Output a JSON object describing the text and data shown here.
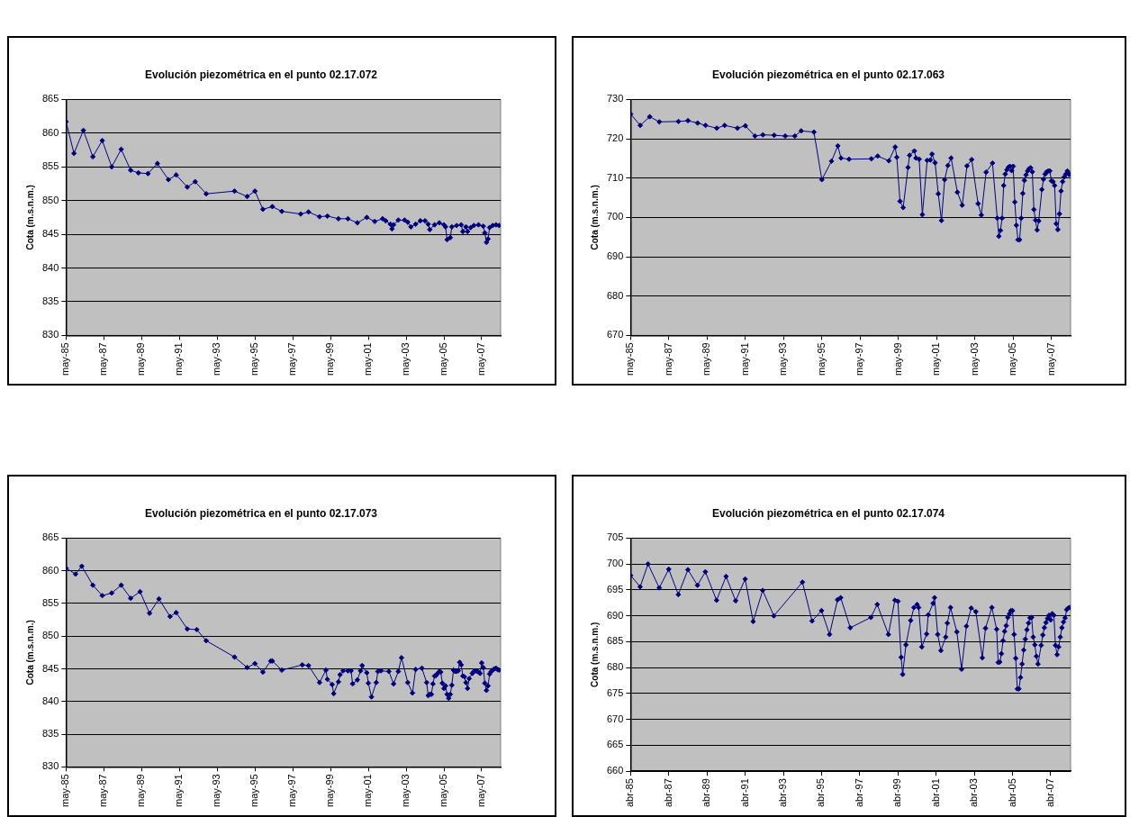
{
  "chart_data": [
    {
      "type": "line",
      "title": "Evolución piezométrica en el punto 02.17.072",
      "ylabel": "Cota (m.s.n.m.)",
      "color": "#000080",
      "marker": "diamond",
      "grid": "y",
      "legend": false,
      "xlim": [
        "1985-05",
        "2008-05"
      ],
      "ylim": [
        830,
        865
      ],
      "yticks": [
        830,
        835,
        840,
        845,
        850,
        855,
        860,
        865
      ],
      "xticks": [
        {
          "value": "1985-05",
          "label": "may-85"
        },
        {
          "value": "1987-05",
          "label": "may-87"
        },
        {
          "value": "1989-05",
          "label": "may-89"
        },
        {
          "value": "1991-05",
          "label": "may-91"
        },
        {
          "value": "1993-05",
          "label": "may-93"
        },
        {
          "value": "1995-05",
          "label": "may-95"
        },
        {
          "value": "1997-05",
          "label": "may-97"
        },
        {
          "value": "1999-05",
          "label": "may-99"
        },
        {
          "value": "2001-05",
          "label": "may-01"
        },
        {
          "value": "2003-05",
          "label": "may-03"
        },
        {
          "value": "2005-05",
          "label": "may-05"
        },
        {
          "value": "2007-05",
          "label": "may-07"
        }
      ],
      "x": [
        "1985-05",
        "1985-10",
        "1986-04",
        "1986-10",
        "1987-04",
        "1987-10",
        "1988-04",
        "1988-10",
        "1989-03",
        "1989-09",
        "1990-03",
        "1990-10",
        "1991-03",
        "1991-10",
        "1992-03",
        "1992-10",
        "1994-04",
        "1994-12",
        "1995-05",
        "1995-10",
        "1996-04",
        "1996-10",
        "1997-10",
        "1998-03",
        "1998-10",
        "1999-03",
        "1999-10",
        "2000-04",
        "2000-10",
        "2001-04",
        "2001-09",
        "2002-02",
        "2002-04",
        "2002-07",
        "2002-08",
        "2002-09",
        "2002-12",
        "2003-04",
        "2003-06",
        "2003-08",
        "2003-11",
        "2004-02",
        "2004-05",
        "2004-07",
        "2004-08",
        "2004-11",
        "2005-02",
        "2005-05",
        "2005-06",
        "2005-07",
        "2005-09",
        "2005-10",
        "2006-01",
        "2006-04",
        "2006-05",
        "2006-07",
        "2006-08",
        "2006-10",
        "2006-12",
        "2007-03",
        "2007-06",
        "2007-07",
        "2007-08",
        "2007-09",
        "2007-10",
        "2007-12",
        "2008-02",
        "2008-04"
      ],
      "values": [
        861.7,
        857.0,
        860.4,
        856.5,
        858.9,
        855.0,
        857.6,
        854.5,
        854.1,
        854.0,
        855.5,
        853.1,
        853.8,
        852.0,
        852.8,
        851.0,
        851.4,
        850.6,
        851.4,
        848.7,
        849.1,
        848.4,
        848.0,
        848.3,
        847.6,
        847.7,
        847.3,
        847.3,
        846.7,
        847.5,
        846.9,
        847.3,
        847.0,
        846.5,
        845.8,
        846.4,
        847.1,
        847.1,
        846.8,
        846.1,
        846.5,
        847.0,
        847.0,
        846.5,
        845.7,
        846.4,
        846.7,
        846.4,
        846.1,
        844.2,
        844.5,
        846.1,
        846.3,
        846.4,
        845.4,
        846.1,
        845.4,
        846.0,
        846.3,
        846.4,
        846.2,
        845.2,
        843.8,
        844.3,
        846.0,
        846.3,
        846.4,
        846.3
      ]
    },
    {
      "type": "line",
      "title": "Evolución piezométrica en el punto 02.17.063",
      "ylabel": "Cota (m.s.n.m.)",
      "color": "#000080",
      "marker": "diamond",
      "grid": "y",
      "legend": false,
      "xlim": [
        "1985-05",
        "2008-05"
      ],
      "ylim": [
        670,
        730
      ],
      "yticks": [
        670,
        680,
        690,
        700,
        710,
        720,
        730
      ],
      "xticks": [
        {
          "value": "1985-05",
          "label": "may-85"
        },
        {
          "value": "1987-05",
          "label": "may-87"
        },
        {
          "value": "1989-05",
          "label": "may-89"
        },
        {
          "value": "1991-05",
          "label": "may-91"
        },
        {
          "value": "1993-05",
          "label": "may-93"
        },
        {
          "value": "1995-05",
          "label": "may-95"
        },
        {
          "value": "1997-05",
          "label": "may-97"
        },
        {
          "value": "1999-05",
          "label": "may-99"
        },
        {
          "value": "2001-05",
          "label": "may-01"
        },
        {
          "value": "2003-05",
          "label": "may-03"
        },
        {
          "value": "2005-05",
          "label": "may-05"
        },
        {
          "value": "2007-05",
          "label": "may-07"
        }
      ],
      "x": [
        "1985-05",
        "1985-11",
        "1986-05",
        "1986-11",
        "1987-11",
        "1988-05",
        "1988-11",
        "1989-04",
        "1989-11",
        "1990-04",
        "1990-12",
        "1991-05",
        "1991-11",
        "1992-04",
        "1992-11",
        "1993-06",
        "1993-12",
        "1994-04",
        "1994-12",
        "1995-05",
        "1995-11",
        "1996-03",
        "1996-05",
        "1996-10",
        "1997-12",
        "1998-04",
        "1998-11",
        "1999-03",
        "1999-04",
        "1999-06",
        "1999-08",
        "1999-11",
        "1999-12",
        "2000-03",
        "2000-04",
        "2000-06",
        "2000-08",
        "2000-11",
        "2001-01",
        "2001-02",
        "2001-04",
        "2001-06",
        "2001-08",
        "2001-10",
        "2001-12",
        "2002-02",
        "2002-06",
        "2002-09",
        "2002-12",
        "2003-03",
        "2003-07",
        "2003-09",
        "2003-12",
        "2004-04",
        "2004-07",
        "2004-08",
        "2004-09",
        "2004-10",
        "2004-11",
        "2004-12",
        "2005-01",
        "2005-02",
        "2005-03",
        "2005-04",
        "2005-05",
        "2005-06",
        "2005-07",
        "2005-08",
        "2005-09",
        "2005-10",
        "2005-11",
        "2005-12",
        "2006-01",
        "2006-02",
        "2006-03",
        "2006-04",
        "2006-05",
        "2006-06",
        "2006-07",
        "2006-08",
        "2006-09",
        "2006-11",
        "2006-12",
        "2007-01",
        "2007-02",
        "2007-03",
        "2007-04",
        "2007-05",
        "2007-06",
        "2007-07",
        "2007-08",
        "2007-09",
        "2007-10",
        "2007-11",
        "2007-12",
        "2008-01",
        "2008-02",
        "2008-03",
        "2008-04",
        "2008-05"
      ],
      "values": [
        726.3,
        723.4,
        725.6,
        724.3,
        724.4,
        724.6,
        724.0,
        723.4,
        722.7,
        723.4,
        722.7,
        723.3,
        720.7,
        721.0,
        720.9,
        720.7,
        720.7,
        722.0,
        721.7,
        709.6,
        714.3,
        718.2,
        715.1,
        714.8,
        714.9,
        715.6,
        714.4,
        717.9,
        715.3,
        704.1,
        702.5,
        712.7,
        715.8,
        716.9,
        715.1,
        714.8,
        700.7,
        714.5,
        714.6,
        716.1,
        713.9,
        706.0,
        699.2,
        709.6,
        713.2,
        715.1,
        706.4,
        703.1,
        713.1,
        714.7,
        703.5,
        700.6,
        711.5,
        713.8,
        699.8,
        695.2,
        696.7,
        699.8,
        708.1,
        711.0,
        712.1,
        712.8,
        713.0,
        711.9,
        713.0,
        703.9,
        698.0,
        694.3,
        694.3,
        699.8,
        706.1,
        709.4,
        710.8,
        711.8,
        712.4,
        712.6,
        711.6,
        702.0,
        699.3,
        696.8,
        699.1,
        707.1,
        709.7,
        711.0,
        711.6,
        711.8,
        711.8,
        709.3,
        709.1,
        708.1,
        698.4,
        696.9,
        700.9,
        706.7,
        709.1,
        710.3,
        711.0,
        711.8,
        710.9,
        711.0
      ]
    },
    {
      "type": "line",
      "title": "Evolución piezométrica en el punto 02.17.073",
      "ylabel": "Cota (m.s.n.m.)",
      "color": "#000080",
      "marker": "diamond",
      "grid": "y",
      "legend": false,
      "xlim": [
        "1985-05",
        "2008-05"
      ],
      "ylim": [
        830,
        865
      ],
      "yticks": [
        830,
        835,
        840,
        845,
        850,
        855,
        860,
        865
      ],
      "xticks": [
        {
          "value": "1985-05",
          "label": "may-85"
        },
        {
          "value": "1987-05",
          "label": "may-87"
        },
        {
          "value": "1989-05",
          "label": "may-89"
        },
        {
          "value": "1991-05",
          "label": "may-91"
        },
        {
          "value": "1993-05",
          "label": "may-93"
        },
        {
          "value": "1995-05",
          "label": "may-95"
        },
        {
          "value": "1997-05",
          "label": "may-97"
        },
        {
          "value": "1999-05",
          "label": "may-99"
        },
        {
          "value": "2001-05",
          "label": "may-01"
        },
        {
          "value": "2003-05",
          "label": "may-03"
        },
        {
          "value": "2005-05",
          "label": "may-05"
        },
        {
          "value": "2007-05",
          "label": "may-07"
        }
      ],
      "x": [
        "1985-05",
        "1985-11",
        "1986-03",
        "1986-10",
        "1987-04",
        "1987-10",
        "1988-04",
        "1988-10",
        "1989-04",
        "1989-10",
        "1990-04",
        "1990-11",
        "1991-03",
        "1991-10",
        "1992-04",
        "1992-10",
        "1994-04",
        "1994-12",
        "1995-05",
        "1995-10",
        "1996-03",
        "1996-04",
        "1996-10",
        "1997-11",
        "1998-03",
        "1998-10",
        "1999-02",
        "1999-03",
        "1999-06",
        "1999-07",
        "1999-10",
        "1999-11",
        "2000-01",
        "2000-04",
        "2000-06",
        "2000-07",
        "2000-10",
        "2000-12",
        "2001-01",
        "2001-04",
        "2001-05",
        "2001-07",
        "2001-10",
        "2001-11",
        "2002-01",
        "2002-06",
        "2002-09",
        "2002-12",
        "2003-02",
        "2003-06",
        "2003-09",
        "2003-11",
        "2004-03",
        "2004-06",
        "2004-07",
        "2004-08",
        "2004-09",
        "2004-10",
        "2004-11",
        "2004-12",
        "2005-01",
        "2005-02",
        "2005-03",
        "2005-04",
        "2005-05",
        "2005-06",
        "2005-07",
        "2005-08",
        "2005-09",
        "2005-10",
        "2005-11",
        "2005-12",
        "2006-01",
        "2006-02",
        "2006-03",
        "2006-04",
        "2006-05",
        "2006-06",
        "2006-07",
        "2006-08",
        "2006-09",
        "2006-11",
        "2006-12",
        "2007-01",
        "2007-02",
        "2007-03",
        "2007-04",
        "2007-05",
        "2007-06",
        "2007-07",
        "2007-08",
        "2007-09",
        "2007-10",
        "2007-11",
        "2007-12",
        "2008-01",
        "2008-02",
        "2008-03",
        "2008-04"
      ],
      "values": [
        860.4,
        859.5,
        860.7,
        857.8,
        856.2,
        856.6,
        857.8,
        855.8,
        856.8,
        853.5,
        855.7,
        853.0,
        853.6,
        851.1,
        851.0,
        849.3,
        846.8,
        845.2,
        845.8,
        844.5,
        846.2,
        846.2,
        844.8,
        845.6,
        845.5,
        842.9,
        844.8,
        843.4,
        842.6,
        841.2,
        843.0,
        844.1,
        844.7,
        844.7,
        844.7,
        842.7,
        843.3,
        844.7,
        845.5,
        844.4,
        842.8,
        840.7,
        842.9,
        844.6,
        844.7,
        844.6,
        842.7,
        844.6,
        846.7,
        842.9,
        841.3,
        844.9,
        845.1,
        842.9,
        840.9,
        841.1,
        841.1,
        842.7,
        843.9,
        844.0,
        844.3,
        844.6,
        844.5,
        842.8,
        842.0,
        842.4,
        841.1,
        840.5,
        841.1,
        842.5,
        844.8,
        844.6,
        844.6,
        844.7,
        846.0,
        845.6,
        843.9,
        843.8,
        842.9,
        842.0,
        843.5,
        844.3,
        844.6,
        844.7,
        844.6,
        844.5,
        844.3,
        845.9,
        845.2,
        842.8,
        841.7,
        842.4,
        844.2,
        844.6,
        844.8,
        845.0,
        845.1,
        844.9,
        844.8
      ]
    },
    {
      "type": "line",
      "title": "Evolución piezométrica en el punto 02.17.074",
      "ylabel": "Cota (m.s.n.m.)",
      "color": "#000080",
      "marker": "diamond",
      "grid": "y",
      "legend": false,
      "xlim": [
        "1985-04",
        "2008-04-15"
      ],
      "ylim": [
        660,
        705
      ],
      "yticks": [
        660,
        665,
        670,
        675,
        680,
        685,
        690,
        695,
        700,
        705
      ],
      "xticks": [
        {
          "value": "1985-04",
          "label": "abr-85"
        },
        {
          "value": "1987-04",
          "label": "abr-87"
        },
        {
          "value": "1989-04",
          "label": "abr-89"
        },
        {
          "value": "1991-04",
          "label": "abr-91"
        },
        {
          "value": "1993-04",
          "label": "abr-93"
        },
        {
          "value": "1995-04",
          "label": "abr-95"
        },
        {
          "value": "1997-04",
          "label": "abr-97"
        },
        {
          "value": "1999-04",
          "label": "abr-99"
        },
        {
          "value": "2001-04",
          "label": "abr-01"
        },
        {
          "value": "2003-04",
          "label": "abr-03"
        },
        {
          "value": "2005-04",
          "label": "abr-05"
        },
        {
          "value": "2007-04",
          "label": "abr-07"
        }
      ],
      "x": [
        "1985-04",
        "1985-10",
        "1986-03",
        "1986-10",
        "1987-04",
        "1987-10",
        "1988-04",
        "1988-10",
        "1989-03",
        "1989-10",
        "1990-04",
        "1990-10",
        "1991-04",
        "1991-09",
        "1992-03",
        "1992-10",
        "1994-04",
        "1994-10",
        "1995-04",
        "1995-09",
        "1996-02",
        "1996-04",
        "1996-10",
        "1997-11",
        "1998-03",
        "1998-10",
        "1999-02",
        "1999-04",
        "1999-06",
        "1999-07",
        "1999-09",
        "1999-12",
        "2000-02",
        "2000-04",
        "2000-05",
        "2000-07",
        "2000-10",
        "2000-11",
        "2001-02",
        "2001-03",
        "2001-05",
        "2001-07",
        "2001-10",
        "2001-11",
        "2002-01",
        "2002-05",
        "2002-08",
        "2002-11",
        "2003-02",
        "2003-05",
        "2003-09",
        "2003-11",
        "2004-03",
        "2004-06",
        "2004-07",
        "2004-08",
        "2004-09",
        "2004-10",
        "2004-11",
        "2004-12",
        "2005-01",
        "2005-02",
        "2005-03",
        "2005-04",
        "2005-05",
        "2005-06",
        "2005-07",
        "2005-08",
        "2005-09",
        "2005-10",
        "2005-11",
        "2005-12",
        "2006-01",
        "2006-02",
        "2006-03",
        "2006-04",
        "2006-05",
        "2006-06",
        "2006-07",
        "2006-08",
        "2006-10",
        "2006-11",
        "2006-12",
        "2007-01",
        "2007-02",
        "2007-03",
        "2007-04",
        "2007-05",
        "2007-06",
        "2007-07",
        "2007-08",
        "2007-09",
        "2007-10",
        "2007-11",
        "2007-12",
        "2008-01",
        "2008-02",
        "2008-03",
        "2008-04"
      ],
      "values": [
        697.8,
        695.6,
        700.0,
        695.4,
        699.0,
        694.1,
        698.9,
        695.9,
        698.5,
        693.0,
        697.6,
        692.9,
        697.1,
        688.9,
        694.9,
        690.0,
        696.5,
        689.0,
        691.0,
        686.4,
        693.1,
        693.5,
        687.7,
        689.7,
        692.2,
        686.4,
        693.0,
        692.8,
        682.0,
        678.7,
        684.4,
        689.1,
        691.6,
        692.2,
        691.6,
        684.0,
        686.5,
        690.2,
        692.4,
        693.5,
        686.4,
        683.3,
        685.9,
        688.6,
        691.6,
        686.9,
        679.7,
        688.0,
        691.5,
        690.8,
        681.9,
        687.6,
        691.6,
        687.4,
        681.0,
        681.1,
        682.7,
        685.2,
        687.0,
        688.1,
        689.7,
        690.4,
        691.0,
        691.0,
        686.4,
        681.8,
        675.9,
        675.9,
        678.1,
        680.7,
        683.4,
        685.5,
        687.3,
        688.6,
        689.6,
        689.7,
        685.9,
        684.4,
        682.2,
        680.7,
        684.3,
        686.3,
        687.7,
        688.7,
        689.5,
        690.1,
        689.2,
        690.4,
        690.1,
        684.3,
        682.5,
        684.0,
        685.9,
        687.7,
        688.8,
        689.6,
        691.2,
        691.5,
        691.6
      ]
    }
  ]
}
